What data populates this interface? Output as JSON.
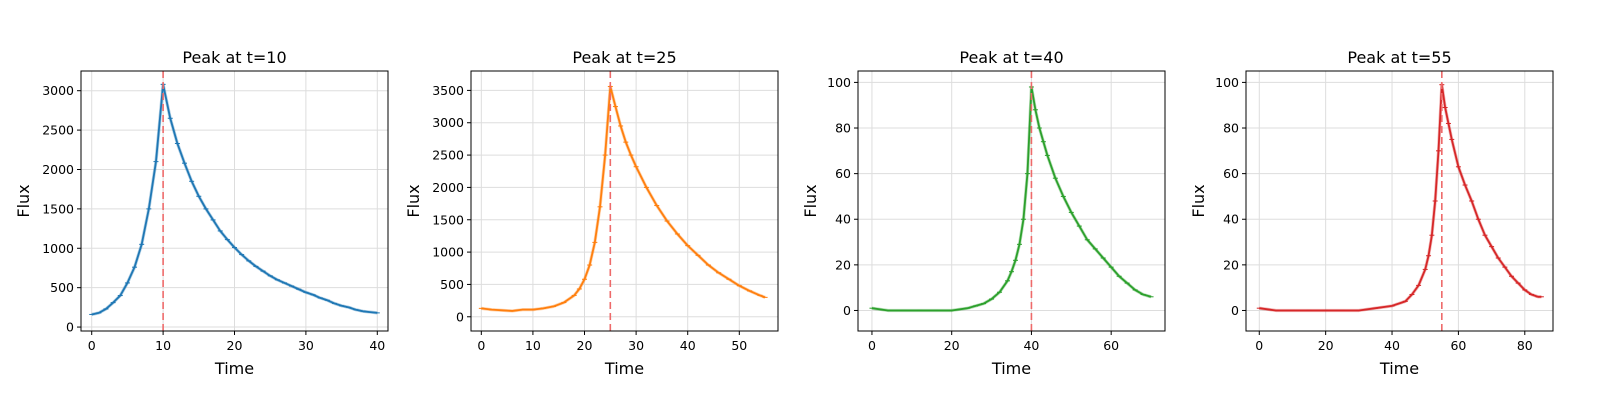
{
  "figure": {
    "background": "#ffffff"
  },
  "chart_data": [
    {
      "type": "line",
      "title": "Peak at t=10",
      "xlabel": "Time",
      "ylabel": "Flux",
      "color": "#1f77b4",
      "peak_line_color": "#ef5350",
      "peak_t": 10,
      "xlim": [
        -1.5,
        41.5
      ],
      "ylim": [
        -50,
        3250
      ],
      "xticks": [
        0,
        10,
        20,
        30,
        40
      ],
      "yticks": [
        0,
        500,
        1000,
        1500,
        2000,
        2500,
        3000
      ],
      "grid": true,
      "series": [
        {
          "x": [
            0,
            1,
            2,
            3,
            4,
            5,
            6,
            7,
            8,
            9,
            10,
            11,
            12,
            13,
            14,
            15,
            16,
            17,
            18,
            19,
            20,
            21,
            22,
            23,
            24,
            25,
            26,
            27,
            28,
            29,
            30,
            31,
            32,
            33,
            34,
            35,
            36,
            37,
            38,
            39,
            40
          ],
          "y": [
            160,
            180,
            230,
            310,
            400,
            560,
            760,
            1050,
            1500,
            2100,
            3080,
            2650,
            2330,
            2080,
            1850,
            1660,
            1500,
            1360,
            1220,
            1110,
            1010,
            920,
            840,
            770,
            710,
            650,
            600,
            560,
            520,
            480,
            440,
            410,
            370,
            340,
            300,
            270,
            250,
            220,
            200,
            190,
            180
          ]
        }
      ]
    },
    {
      "type": "line",
      "title": "Peak at t=25",
      "xlabel": "Time",
      "ylabel": "Flux",
      "color": "#ff7f0e",
      "peak_line_color": "#ef5350",
      "peak_t": 25,
      "xlim": [
        -2.0,
        57.5
      ],
      "ylim": [
        -220,
        3800
      ],
      "xticks": [
        0,
        10,
        20,
        30,
        40,
        50
      ],
      "yticks": [
        0,
        500,
        1000,
        1500,
        2000,
        2500,
        3000,
        3500
      ],
      "grid": true,
      "series": [
        {
          "x": [
            0,
            2,
            4,
            6,
            8,
            10,
            12,
            14,
            16,
            18,
            19,
            20,
            21,
            22,
            23,
            24,
            25,
            26,
            27,
            28,
            29,
            30,
            32,
            34,
            36,
            38,
            40,
            42,
            44,
            46,
            48,
            50,
            52,
            54,
            55
          ],
          "y": [
            130,
            110,
            100,
            90,
            110,
            110,
            130,
            160,
            220,
            330,
            430,
            580,
            800,
            1150,
            1700,
            2500,
            3560,
            3250,
            2950,
            2700,
            2500,
            2320,
            2000,
            1720,
            1480,
            1280,
            1100,
            950,
            800,
            680,
            580,
            480,
            400,
            330,
            300
          ]
        }
      ]
    },
    {
      "type": "line",
      "title": "Peak at t=40",
      "xlabel": "Time",
      "ylabel": "Flux",
      "color": "#2ca02c",
      "peak_line_color": "#ef5350",
      "peak_t": 40,
      "xlim": [
        -3.5,
        73.5
      ],
      "ylim": [
        -9,
        105
      ],
      "xticks": [
        0,
        20,
        40,
        60
      ],
      "yticks": [
        0,
        20,
        40,
        60,
        80,
        100
      ],
      "grid": true,
      "series": [
        {
          "x": [
            0,
            4,
            8,
            12,
            16,
            20,
            24,
            26,
            28,
            30,
            32,
            34,
            35,
            36,
            37,
            38,
            39,
            40,
            41,
            42,
            43,
            44,
            46,
            48,
            50,
            52,
            54,
            56,
            58,
            60,
            62,
            64,
            66,
            68,
            70
          ],
          "y": [
            1,
            0,
            0,
            0,
            0,
            0,
            1,
            2,
            3,
            5,
            8,
            13,
            17,
            22,
            29,
            40,
            60,
            98,
            88,
            80,
            74,
            68,
            58,
            50,
            43,
            37,
            31,
            27,
            23,
            19,
            15,
            12,
            9,
            7,
            6
          ]
        }
      ]
    },
    {
      "type": "line",
      "title": "Peak at t=55",
      "xlabel": "Time",
      "ylabel": "Flux",
      "color": "#d62728",
      "peak_line_color": "#ef5350",
      "peak_t": 55,
      "xlim": [
        -4.0,
        88.5
      ],
      "ylim": [
        -9,
        105
      ],
      "xticks": [
        0,
        20,
        40,
        60,
        80
      ],
      "yticks": [
        0,
        20,
        40,
        60,
        80,
        100
      ],
      "grid": true,
      "series": [
        {
          "x": [
            0,
            5,
            10,
            15,
            20,
            25,
            30,
            35,
            40,
            44,
            46,
            48,
            50,
            51,
            52,
            53,
            54,
            55,
            56,
            57,
            58,
            60,
            62,
            64,
            66,
            68,
            70,
            72,
            74,
            76,
            78,
            80,
            82,
            84,
            85
          ],
          "y": [
            1,
            0,
            0,
            0,
            0,
            0,
            0,
            1,
            2,
            4,
            7,
            11,
            18,
            24,
            33,
            48,
            70,
            99,
            89,
            82,
            75,
            63,
            55,
            48,
            40,
            33,
            28,
            23,
            19,
            15,
            12,
            9,
            7,
            6,
            6
          ]
        }
      ]
    }
  ]
}
